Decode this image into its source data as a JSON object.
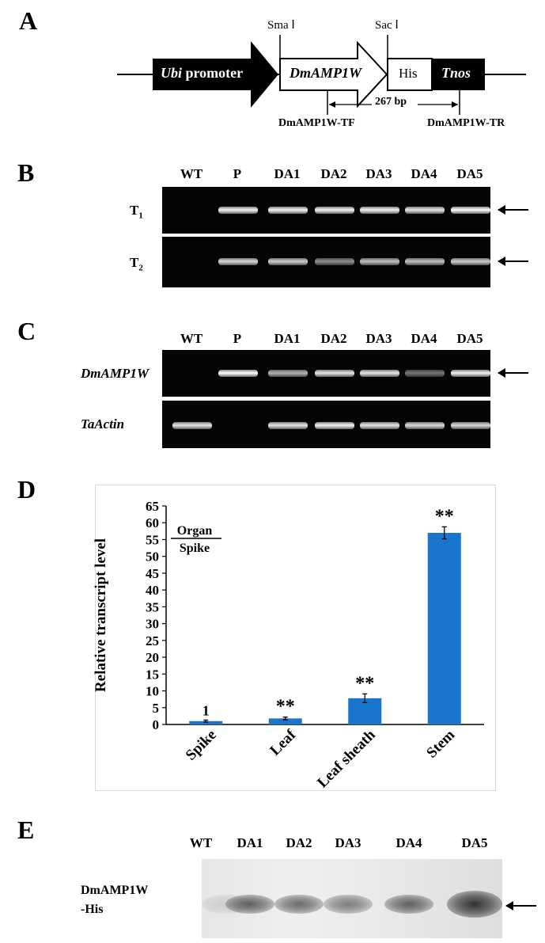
{
  "panels": {
    "a": "A",
    "b": "B",
    "c": "C",
    "d": "D",
    "e": "E"
  },
  "construct": {
    "site_sma": "Sma Ⅰ",
    "site_sac": "Sac Ⅰ",
    "ubi_italic": "Ubi",
    "ubi_rest": " promoter",
    "gene": "DmAMP1W",
    "his": "His",
    "tnos": "Tnos",
    "amplicon": "267 bp",
    "primer_f": "DmAMP1W-TF",
    "primer_r": "DmAMP1W-TR"
  },
  "gel_b": {
    "lanes": [
      "WT",
      "P",
      "DA1",
      "DA2",
      "DA3",
      "DA4",
      "DA5"
    ],
    "row1_label_main": "T",
    "row1_label_sub": "1",
    "row2_label_main": "T",
    "row2_label_sub": "2",
    "row1_intensity": [
      0,
      0.95,
      0.95,
      0.95,
      0.95,
      0.9,
      1.0
    ],
    "row2_intensity": [
      0,
      0.85,
      0.8,
      0.55,
      0.75,
      0.75,
      0.8
    ]
  },
  "gel_c": {
    "lanes": [
      "WT",
      "P",
      "DA1",
      "DA2",
      "DA3",
      "DA4",
      "DA5"
    ],
    "row1_label": "DmAMP1W",
    "row2_label": "TaActin",
    "row1_intensity": [
      0,
      1.0,
      0.7,
      0.9,
      0.9,
      0.45,
      0.95
    ],
    "row2_intensity": [
      0.9,
      0,
      0.9,
      0.95,
      0.9,
      0.85,
      0.85
    ]
  },
  "chart_data": {
    "type": "bar",
    "categories": [
      "Spike",
      "Leaf",
      "Leaf sheath",
      "Stem"
    ],
    "values": [
      1,
      1.8,
      7.8,
      57
    ],
    "errors": [
      0.3,
      0.4,
      1.3,
      1.8
    ],
    "annotations": [
      "1",
      "**",
      "**",
      "**"
    ],
    "ylabel": "Relative transcript level",
    "ylim": [
      0,
      65
    ],
    "yticks": [
      0,
      5,
      10,
      15,
      20,
      25,
      30,
      35,
      40,
      45,
      50,
      55,
      60,
      65
    ],
    "legend_numerator": "Organ",
    "legend_denominator": "Spike",
    "bar_color": "#1a75cf"
  },
  "blot_e": {
    "lanes": [
      "WT",
      "DA1",
      "DA2",
      "DA3",
      "DA4",
      "DA5"
    ],
    "label_line1": "DmAMP1W",
    "label_line2": "-His",
    "intensity": [
      0.15,
      0.75,
      0.7,
      0.6,
      0.75,
      1.0
    ]
  }
}
